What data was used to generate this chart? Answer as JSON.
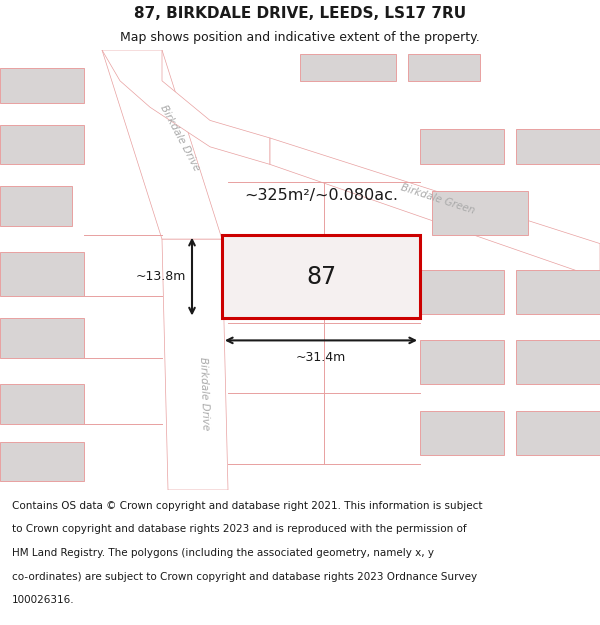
{
  "title_line1": "87, BIRKDALE DRIVE, LEEDS, LS17 7RU",
  "title_line2": "Map shows position and indicative extent of the property.",
  "footer_lines": [
    "Contains OS data © Crown copyright and database right 2021. This information is subject",
    "to Crown copyright and database rights 2023 and is reproduced with the permission of",
    "HM Land Registry. The polygons (including the associated geometry, namely x, y",
    "co-ordinates) are subject to Crown copyright and database rights 2023 Ordnance Survey",
    "100026316."
  ],
  "area_label": "~325m²/~0.080ac.",
  "width_label": "~31.4m",
  "height_label": "~13.8m",
  "number_label": "87",
  "map_bg": "#f0eeee",
  "road_color": "#ffffff",
  "road_stroke": "#e8a0a0",
  "building_fill": "#d8d4d4",
  "building_edge": "#e8a0a0",
  "highlight_fill": "#f5f0f0",
  "highlight_stroke": "#cc0000",
  "dim_line_color": "#1a1a1a",
  "text_color": "#1a1a1a",
  "street_label_color": "#aaaaaa",
  "title_fontsize": 11,
  "subtitle_fontsize": 9,
  "footer_fontsize": 7.5
}
